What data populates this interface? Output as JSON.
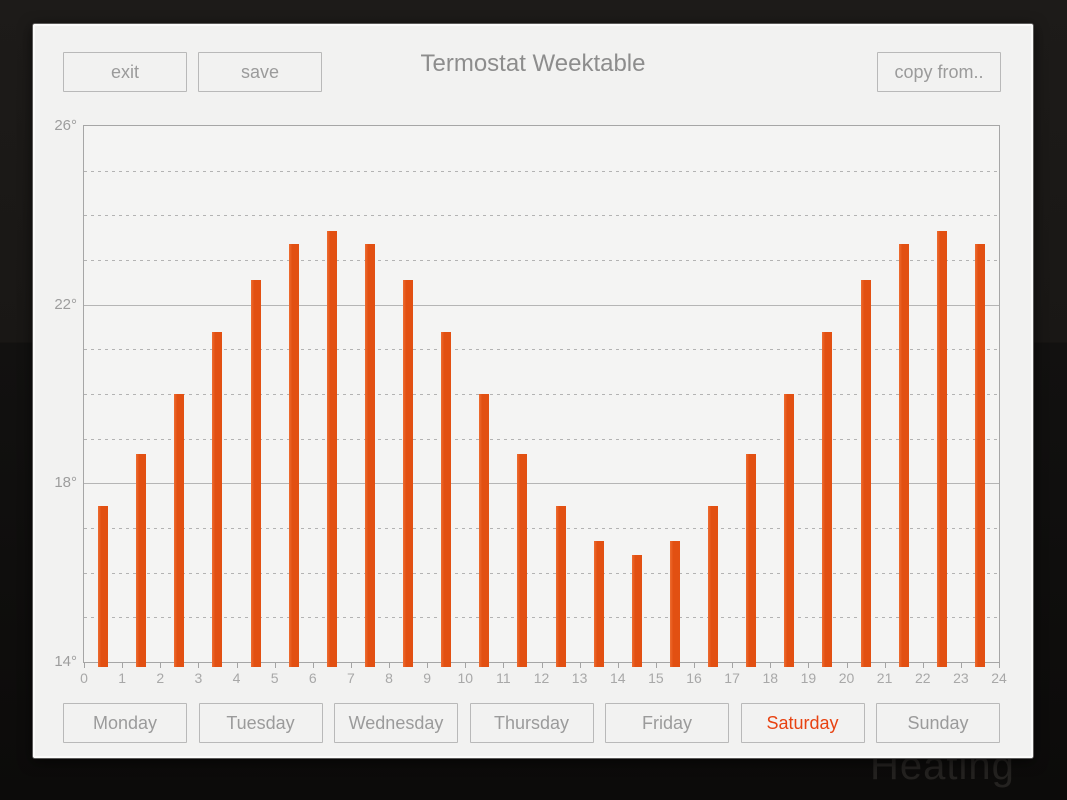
{
  "header": {
    "exit_label": "exit",
    "save_label": "save",
    "title": "Termostat Weektable",
    "copy_from_label": "copy from.."
  },
  "background": {
    "watermark": "Heating"
  },
  "chart_data": {
    "type": "bar",
    "title": "Termostat Weektable",
    "xlabel": "",
    "ylabel": "",
    "categories": [
      0,
      1,
      2,
      3,
      4,
      5,
      6,
      7,
      8,
      9,
      10,
      11,
      12,
      13,
      14,
      15,
      16,
      17,
      18,
      19,
      20,
      21,
      22,
      23
    ],
    "values": [
      17.5,
      18.65,
      20,
      21.4,
      22.55,
      23.35,
      23.65,
      23.35,
      22.55,
      21.4,
      20,
      18.65,
      17.5,
      16.7,
      16.4,
      16.7,
      17.5,
      18.65,
      20,
      21.4,
      22.55,
      23.35,
      23.65,
      23.35
    ],
    "ylim": [
      14,
      26
    ],
    "yticks": [
      {
        "value": 26,
        "label": "26°"
      },
      {
        "value": 22,
        "label": "22°"
      },
      {
        "value": 18,
        "label": "18°"
      },
      {
        "value": 14,
        "label": "14°"
      }
    ],
    "grid_dashed_degrees": [
      15,
      16,
      17,
      19,
      20,
      21,
      23,
      24,
      25
    ],
    "grid_solid_degrees": [
      18,
      22
    ],
    "xtick_labels": [
      "0",
      "1",
      "2",
      "3",
      "4",
      "5",
      "6",
      "7",
      "8",
      "9",
      "10",
      "11",
      "12",
      "13",
      "14",
      "15",
      "16",
      "17",
      "18",
      "19",
      "20",
      "21",
      "22",
      "23",
      "24"
    ],
    "legend": null,
    "grid": "horizontal"
  },
  "day_tabs": {
    "days": [
      "Monday",
      "Tuesday",
      "Wednesday",
      "Thursday",
      "Friday",
      "Saturday",
      "Sunday"
    ],
    "selected": "Saturday"
  },
  "colors": {
    "bar": "#e25012",
    "selected_day_text": "#e84312",
    "panel_bg": "#f2f2f1",
    "plot_bg": "#f4f4f3",
    "grid_line": "#b4b4b4",
    "frame_border": "#a6a6a6",
    "button_border": "#b9b9b9",
    "button_text": "#9b9b9b",
    "title_text": "#8d8d8d",
    "axis_text": "#a8a8a8",
    "outer_background": "#121110"
  }
}
